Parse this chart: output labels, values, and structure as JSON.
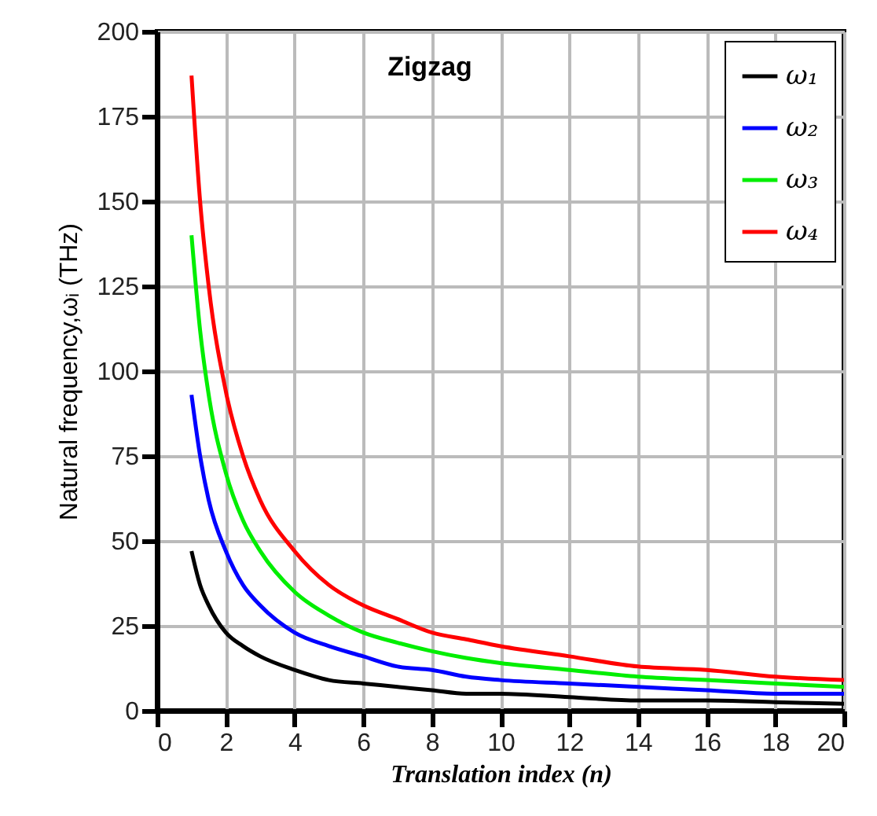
{
  "chart_data": {
    "type": "line",
    "title": "Zigzag",
    "xlabel": "Translation index (n)",
    "ylabel": "Natural frequency,ωᵢ (THz)",
    "x": [
      1,
      1.25,
      1.5,
      2,
      2.5,
      3,
      4,
      5,
      6,
      7,
      8,
      9,
      10,
      12,
      14,
      16,
      18,
      20
    ],
    "series": [
      {
        "name": "ω₁",
        "color": "#000000",
        "values": [
          47,
          37,
          31,
          23,
          19,
          16,
          12,
          9,
          8,
          7,
          6,
          5,
          5,
          4,
          3,
          3,
          2.5,
          2
        ]
      },
      {
        "name": "ω₂",
        "color": "#0000ff",
        "values": [
          93,
          75,
          62,
          47,
          37,
          31,
          23,
          19,
          16,
          13,
          12,
          10,
          9,
          8,
          7,
          6,
          5,
          5
        ]
      },
      {
        "name": "ω₃",
        "color": "#00ee00",
        "values": [
          140,
          112,
          93,
          70,
          56,
          47,
          35,
          28,
          23,
          20,
          17.5,
          15.5,
          14,
          12,
          10,
          9,
          8,
          7
        ]
      },
      {
        "name": "ω₄",
        "color": "#ff0000",
        "values": [
          187,
          150,
          125,
          94,
          75,
          62,
          47,
          37,
          31,
          27,
          23,
          21,
          19,
          16,
          13,
          12,
          10,
          9
        ]
      }
    ],
    "xlim": [
      0,
      20
    ],
    "xticks": [
      0,
      2,
      4,
      6,
      8,
      10,
      12,
      14,
      16,
      18,
      20
    ],
    "ylim": [
      0,
      200
    ],
    "yticks": [
      0,
      25,
      50,
      75,
      100,
      125,
      150,
      175,
      200
    ],
    "grid": true,
    "legend": "top right",
    "marker": "none",
    "line_style": "solid"
  }
}
